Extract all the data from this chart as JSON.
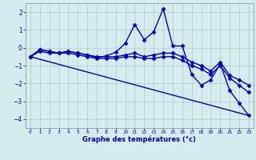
{
  "xlabel": "Graphe des températures (°c)",
  "background_color": "#d4eef0",
  "line_color": "#0000bb",
  "grid_color": "#aacccc",
  "xlim": [
    -0.5,
    23.5
  ],
  "ylim": [
    -4.5,
    2.5
  ],
  "xticks": [
    0,
    1,
    2,
    3,
    4,
    5,
    6,
    7,
    8,
    9,
    10,
    11,
    12,
    13,
    14,
    15,
    16,
    17,
    18,
    19,
    20,
    21,
    22,
    23
  ],
  "yticks": [
    -4,
    -3,
    -2,
    -1,
    0,
    1,
    2
  ],
  "series": [
    {
      "x": [
        0,
        1,
        2,
        3,
        4,
        5,
        6,
        7,
        8,
        9,
        10,
        11,
        12,
        13,
        14,
        15,
        16,
        17,
        18,
        19,
        20,
        21,
        22,
        23
      ],
      "y": [
        -0.5,
        -0.2,
        -0.3,
        -0.3,
        -0.2,
        -0.3,
        -0.4,
        -0.55,
        -0.45,
        -0.25,
        0.25,
        1.3,
        0.45,
        0.9,
        2.2,
        0.1,
        0.1,
        -1.5,
        -2.1,
        -1.8,
        -0.9,
        -2.4,
        -3.1,
        -3.8
      ],
      "has_marker": true
    },
    {
      "x": [
        0,
        1,
        2,
        3,
        4,
        5,
        6,
        7,
        8,
        9,
        10,
        11,
        12,
        13,
        14,
        15,
        16,
        17,
        18,
        19,
        20,
        21,
        22,
        23
      ],
      "y": [
        -0.5,
        -0.1,
        -0.2,
        -0.3,
        -0.2,
        -0.3,
        -0.4,
        -0.5,
        -0.5,
        -0.5,
        -0.4,
        -0.3,
        -0.5,
        -0.4,
        -0.3,
        -0.3,
        -0.5,
        -0.8,
        -1.0,
        -1.3,
        -0.8,
        -1.55,
        -1.8,
        -2.1
      ],
      "has_marker": true
    },
    {
      "x": [
        0,
        1,
        2,
        3,
        4,
        5,
        6,
        7,
        8,
        9,
        10,
        11,
        12,
        13,
        14,
        15,
        16,
        17,
        18,
        19,
        20,
        21,
        22,
        23
      ],
      "y": [
        -0.5,
        -0.1,
        -0.2,
        -0.3,
        -0.3,
        -0.4,
        -0.5,
        -0.6,
        -0.6,
        -0.6,
        -0.5,
        -0.5,
        -0.6,
        -0.6,
        -0.5,
        -0.5,
        -0.7,
        -1.0,
        -1.2,
        -1.5,
        -1.0,
        -1.7,
        -2.1,
        -2.5
      ],
      "has_marker": true
    },
    {
      "x": [
        0,
        23
      ],
      "y": [
        -0.5,
        -3.8
      ],
      "has_marker": false
    }
  ],
  "marker": "D",
  "markersize": 2.5,
  "linewidth": 1.0
}
